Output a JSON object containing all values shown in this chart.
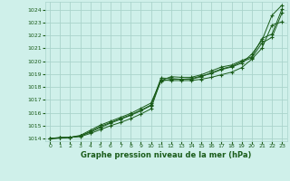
{
  "xlabel": "Graphe pression niveau de la mer (hPa)",
  "bg_color": "#cff0ea",
  "grid_color": "#aad4cc",
  "line_color": "#1a5c1a",
  "x_ticks": [
    0,
    1,
    2,
    3,
    4,
    5,
    6,
    7,
    8,
    9,
    10,
    11,
    12,
    13,
    14,
    15,
    16,
    17,
    18,
    19,
    20,
    21,
    22,
    23
  ],
  "ylim": [
    1013.8,
    1024.6
  ],
  "xlim": [
    -0.5,
    23.5
  ],
  "yticks": [
    1014,
    1015,
    1016,
    1017,
    1018,
    1019,
    1020,
    1021,
    1022,
    1023,
    1024
  ],
  "series": [
    [
      1014.0,
      1014.05,
      1014.1,
      1014.15,
      1014.4,
      1014.7,
      1015.0,
      1015.25,
      1015.55,
      1015.9,
      1016.3,
      1018.55,
      1018.5,
      1018.5,
      1018.5,
      1018.6,
      1018.75,
      1018.95,
      1019.15,
      1019.5,
      1020.15,
      1021.0,
      1022.8,
      1023.05
    ],
    [
      1014.0,
      1014.05,
      1014.1,
      1014.2,
      1014.5,
      1014.85,
      1015.2,
      1015.5,
      1015.8,
      1016.15,
      1016.55,
      1018.7,
      1018.65,
      1018.6,
      1018.65,
      1018.85,
      1019.05,
      1019.35,
      1019.55,
      1019.85,
      1020.55,
      1021.6,
      1023.55,
      1024.35
    ],
    [
      1014.0,
      1014.1,
      1014.1,
      1014.25,
      1014.65,
      1015.05,
      1015.35,
      1015.65,
      1015.95,
      1016.35,
      1016.75,
      1018.5,
      1018.8,
      1018.75,
      1018.75,
      1018.95,
      1019.25,
      1019.55,
      1019.7,
      1020.05,
      1020.35,
      1021.75,
      1022.1,
      1024.05
    ],
    [
      1014.0,
      1014.05,
      1014.1,
      1014.2,
      1014.55,
      1014.95,
      1015.25,
      1015.55,
      1015.85,
      1016.2,
      1016.6,
      1018.45,
      1018.6,
      1018.6,
      1018.6,
      1018.8,
      1019.1,
      1019.4,
      1019.6,
      1019.95,
      1020.25,
      1021.4,
      1021.85,
      1023.75
    ]
  ]
}
